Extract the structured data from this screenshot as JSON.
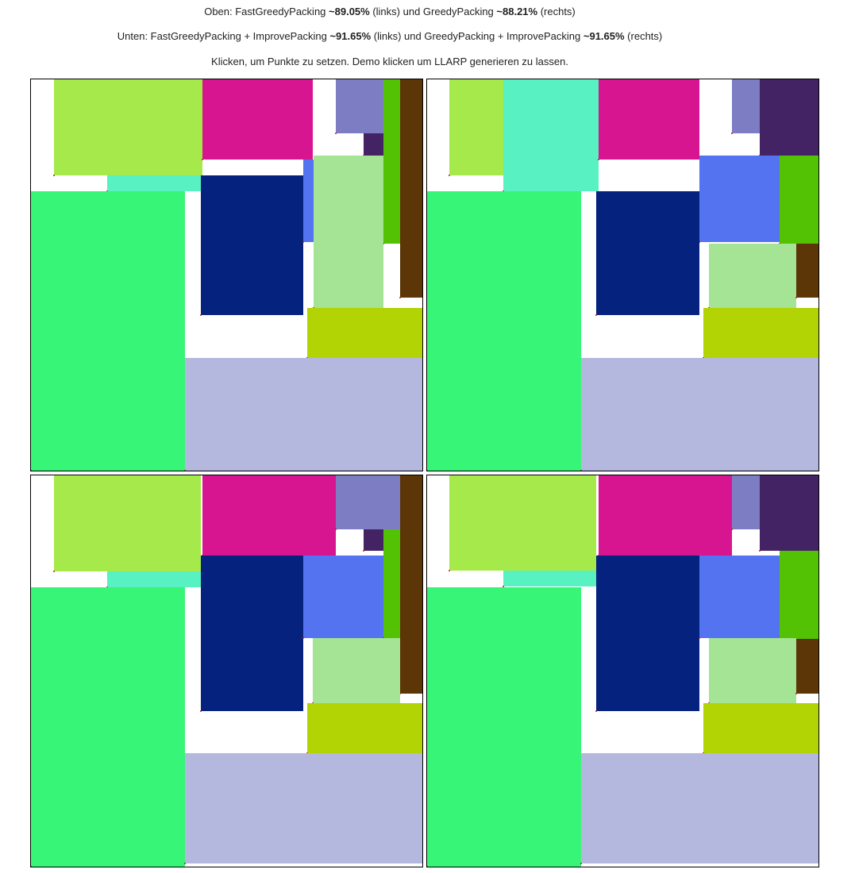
{
  "header": {
    "line1": {
      "prefix": "Oben: FastGreedyPacking ",
      "left_value": "~89.05%",
      "middle": " (links) und GreedyPacking ",
      "right_value": "~88.21%",
      "suffix": " (rechts)"
    },
    "line2": {
      "prefix": "Unten: FastGreedyPacking + ImprovePacking ",
      "left_value": "~91.65%",
      "middle": " (links) und GreedyPacking + ImprovePacking ",
      "right_value": "~91.65%",
      "suffix": " (rechts)"
    },
    "line3": "Klicken, um Punkte zu setzen. Demo klicken um LLARP generieren zu lassen."
  },
  "colors": {
    "lime": "#a6e94a",
    "magenta": "#d81591",
    "lavender": "#7d7dc3",
    "darkpurple": "#432363",
    "green": "#53c205",
    "brown": "#5d3607",
    "mint": "#58f1c2",
    "navy": "#05227e",
    "blue": "#5373f0",
    "lightgreen": "#a4e494",
    "olive": "#b2d404",
    "spring": "#37f577",
    "periwinkle": "#b4b8df"
  },
  "panels": [
    {
      "id": "fast-greedy",
      "rects": [
        {
          "color": "lime"
        },
        {
          "color": "magenta"
        },
        {
          "color": "lavender"
        },
        {
          "color": "darkpurple"
        },
        {
          "color": "green"
        },
        {
          "color": "brown"
        },
        {
          "color": "mint"
        },
        {
          "color": "navy"
        },
        {
          "color": "blue"
        },
        {
          "color": "lightgreen"
        },
        {
          "color": "olive"
        },
        {
          "color": "spring"
        },
        {
          "color": "periwinkle"
        }
      ]
    },
    {
      "id": "greedy",
      "rects": [
        {
          "color": "lime"
        },
        {
          "color": "mint"
        },
        {
          "color": "magenta"
        },
        {
          "color": "lavender"
        },
        {
          "color": "darkpurple"
        },
        {
          "color": "blue"
        },
        {
          "color": "green"
        },
        {
          "color": "navy"
        },
        {
          "color": "lightgreen"
        },
        {
          "color": "brown"
        },
        {
          "color": "olive"
        },
        {
          "color": "spring"
        },
        {
          "color": "periwinkle"
        }
      ]
    },
    {
      "id": "fast-greedy-improve",
      "rects": [
        {
          "color": "lime"
        },
        {
          "color": "magenta"
        },
        {
          "color": "lavender"
        },
        {
          "color": "darkpurple"
        },
        {
          "color": "brown"
        },
        {
          "color": "mint"
        },
        {
          "color": "navy"
        },
        {
          "color": "blue"
        },
        {
          "color": "green"
        },
        {
          "color": "lightgreen"
        },
        {
          "color": "olive"
        },
        {
          "color": "spring"
        },
        {
          "color": "periwinkle"
        }
      ]
    },
    {
      "id": "greedy-improve",
      "rects": [
        {
          "color": "lime"
        },
        {
          "color": "magenta"
        },
        {
          "color": "lavender"
        },
        {
          "color": "darkpurple"
        },
        {
          "color": "green"
        },
        {
          "color": "mint"
        },
        {
          "color": "navy"
        },
        {
          "color": "blue"
        },
        {
          "color": "lightgreen"
        },
        {
          "color": "brown"
        },
        {
          "color": "olive"
        },
        {
          "color": "spring"
        },
        {
          "color": "periwinkle"
        }
      ]
    }
  ]
}
